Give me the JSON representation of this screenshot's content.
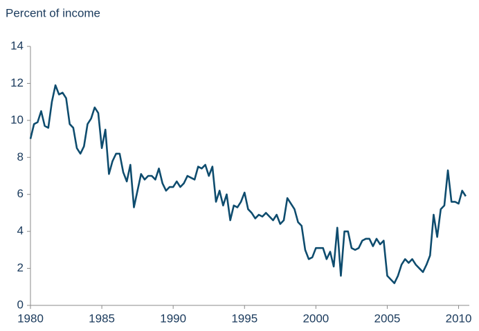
{
  "chart_data": {
    "type": "line",
    "title": "Percent of income",
    "x": [
      1980,
      1980.25,
      1980.5,
      1980.75,
      1981,
      1981.25,
      1981.5,
      1981.75,
      1982,
      1982.25,
      1982.5,
      1982.75,
      1983,
      1983.25,
      1983.5,
      1983.75,
      1984,
      1984.25,
      1984.5,
      1984.75,
      1985,
      1985.25,
      1985.5,
      1985.75,
      1986,
      1986.25,
      1986.5,
      1986.75,
      1987,
      1987.25,
      1987.5,
      1987.75,
      1988,
      1988.25,
      1988.5,
      1988.75,
      1989,
      1989.25,
      1989.5,
      1989.75,
      1990,
      1990.25,
      1990.5,
      1990.75,
      1991,
      1991.25,
      1991.5,
      1991.75,
      1992,
      1992.25,
      1992.5,
      1992.75,
      1993,
      1993.25,
      1993.5,
      1993.75,
      1994,
      1994.25,
      1994.5,
      1994.75,
      1995,
      1995.25,
      1995.5,
      1995.75,
      1996,
      1996.25,
      1996.5,
      1996.75,
      1997,
      1997.25,
      1997.5,
      1997.75,
      1998,
      1998.25,
      1998.5,
      1998.75,
      1999,
      1999.25,
      1999.5,
      1999.75,
      2000,
      2000.25,
      2000.5,
      2000.75,
      2001,
      2001.25,
      2001.5,
      2001.75,
      2002,
      2002.25,
      2002.5,
      2002.75,
      2003,
      2003.25,
      2003.5,
      2003.75,
      2004,
      2004.25,
      2004.5,
      2004.75,
      2005,
      2005.25,
      2005.5,
      2005.75,
      2006,
      2006.25,
      2006.5,
      2006.75,
      2007,
      2007.25,
      2007.5,
      2007.75,
      2008,
      2008.25,
      2008.5,
      2008.75,
      2009,
      2009.25,
      2009.5,
      2009.75,
      2010,
      2010.25,
      2010.5
    ],
    "series": [
      {
        "color": "#0e4c6e",
        "values": [
          9.0,
          9.8,
          9.9,
          10.5,
          9.7,
          9.6,
          11.0,
          11.9,
          11.4,
          11.5,
          11.2,
          9.8,
          9.6,
          8.5,
          8.2,
          8.6,
          9.8,
          10.1,
          10.7,
          10.4,
          8.5,
          9.5,
          7.1,
          7.8,
          8.2,
          8.2,
          7.2,
          6.7,
          7.6,
          5.3,
          6.2,
          7.1,
          6.8,
          7.0,
          7.0,
          6.8,
          7.4,
          6.6,
          6.2,
          6.4,
          6.4,
          6.7,
          6.4,
          6.6,
          7.0,
          6.9,
          6.8,
          7.5,
          7.4,
          7.6,
          7.0,
          7.5,
          5.6,
          6.2,
          5.4,
          6.0,
          4.6,
          5.4,
          5.3,
          5.6,
          6.1,
          5.2,
          5.0,
          4.7,
          4.9,
          4.8,
          5.0,
          4.8,
          4.6,
          4.9,
          4.4,
          4.6,
          5.8,
          5.5,
          5.2,
          4.5,
          4.3,
          3.0,
          2.5,
          2.6,
          3.1,
          3.1,
          3.1,
          2.5,
          2.9,
          2.1,
          4.2,
          1.6,
          4.0,
          4.0,
          3.1,
          3.0,
          3.1,
          3.5,
          3.6,
          3.6,
          3.2,
          3.6,
          3.3,
          3.5,
          1.6,
          1.4,
          1.2,
          1.6,
          2.2,
          2.5,
          2.3,
          2.5,
          2.2,
          2.0,
          1.8,
          2.2,
          2.7,
          4.9,
          3.7,
          5.2,
          5.4,
          7.3,
          5.6,
          5.6,
          5.5,
          6.2,
          5.9
        ]
      }
    ],
    "xlim": [
      1980,
      2010.75
    ],
    "xticks": [
      1980,
      1985,
      1990,
      1995,
      2000,
      2005,
      2010
    ],
    "ylim": [
      0,
      14
    ],
    "yticks": [
      0,
      2,
      4,
      6,
      8,
      10,
      12,
      14
    ]
  }
}
